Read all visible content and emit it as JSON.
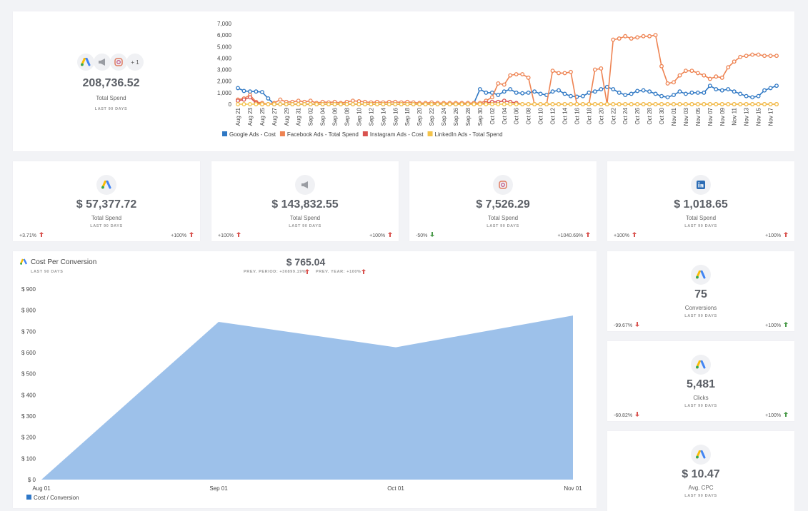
{
  "summary": {
    "value": "208,736.52",
    "label": "Total Spend",
    "period": "LAST 90 DAYS",
    "more": "+ 1"
  },
  "cards": [
    {
      "value": "$ 57,377.72",
      "label": "Total Spend",
      "period": "LAST 90 DAYS",
      "left": "+3.71%",
      "right": "+100%"
    },
    {
      "value": "$ 143,832.55",
      "label": "Total Spend",
      "period": "LAST 90 DAYS",
      "left": "+100%",
      "right": "+100%"
    },
    {
      "value": "$ 7,526.29",
      "label": "Total Spend",
      "period": "LAST 90 DAYS",
      "left": "-50%",
      "right": "+1040.69%"
    },
    {
      "value": "$ 1,018.65",
      "label": "Total Spend",
      "period": "LAST 90 DAYS",
      "left": "+100%",
      "right": "+100%"
    }
  ],
  "side_cards": [
    {
      "value": "75",
      "label": "Conversions",
      "period": "LAST 90 DAYS",
      "left": "-99.67%",
      "right": "+100%"
    },
    {
      "value": "5,481",
      "label": "Clicks",
      "period": "LAST 90 DAYS",
      "left": "-60.82%",
      "right": "+100%"
    },
    {
      "value": "$ 10.47",
      "label": "Avg. CPC",
      "period": "LAST 90 DAYS"
    }
  ],
  "cost_panel": {
    "title": "Cost Per Conversion",
    "period": "LAST 90 DAYS",
    "value": "$ 765.04",
    "prev_period": "PREV. PERIOD: +30899.19%",
    "prev_year": "PREV. YEAR: +100%"
  },
  "chart_data": [
    {
      "type": "line",
      "categories": [
        "Aug 21",
        null,
        "Aug 23",
        null,
        "Aug 25",
        null,
        "Aug 27",
        null,
        "Aug 29",
        null,
        "Aug 31",
        null,
        "Sep 02",
        null,
        "Sep 04",
        null,
        "Sep 06",
        null,
        "Sep 08",
        null,
        "Sep 10",
        null,
        "Sep 12",
        null,
        "Sep 14",
        null,
        "Sep 16",
        null,
        "Sep 18",
        null,
        "Sep 20",
        null,
        "Sep 22",
        null,
        "Sep 24",
        null,
        "Sep 26",
        null,
        "Sep 28",
        null,
        "Sep 30",
        null,
        "Oct 02",
        null,
        "Oct 04",
        null,
        "Oct 06",
        null,
        "Oct 08",
        null,
        "Oct 10",
        null,
        "Oct 12",
        null,
        "Oct 14",
        null,
        "Oct 16",
        null,
        "Oct 18",
        null,
        "Oct 20",
        null,
        "Oct 22",
        null,
        "Oct 24",
        null,
        "Oct 26",
        null,
        "Oct 28",
        null,
        "Oct 30",
        null,
        "Nov 01",
        null,
        "Nov 03",
        null,
        "Nov 05",
        null,
        "Nov 07",
        null,
        "Nov 09",
        null,
        "Nov 11",
        null,
        "Nov 13",
        null,
        "Nov 15",
        null,
        "Nov 17",
        null
      ],
      "series": [
        {
          "name": "Google Ads - Cost",
          "color": "#2f78c4",
          "values": [
            1400,
            1150,
            1100,
            1100,
            1050,
            500,
            0,
            0,
            0,
            0,
            0,
            0,
            0,
            0,
            0,
            0,
            0,
            0,
            0,
            0,
            0,
            0,
            0,
            0,
            0,
            0,
            0,
            0,
            0,
            0,
            0,
            0,
            0,
            0,
            0,
            0,
            0,
            0,
            0,
            100,
            1300,
            1000,
            1000,
            800,
            1100,
            1300,
            1000,
            950,
            1000,
            1100,
            900,
            800,
            1100,
            1200,
            900,
            700,
            650,
            700,
            1000,
            1100,
            1300,
            1500,
            1300,
            1000,
            800,
            900,
            1150,
            1200,
            1100,
            900,
            700,
            600,
            800,
            1100,
            900,
            1000,
            1000,
            1000,
            1600,
            1300,
            1200,
            1300,
            1100,
            900,
            700,
            600,
            700,
            1200,
            1400,
            1600
          ]
        },
        {
          "name": "Facebook Ads - Total Spend",
          "color": "#ee8352",
          "values": [
            400,
            500,
            800,
            200,
            100,
            0,
            100,
            400,
            200,
            200,
            300,
            200,
            300,
            100,
            200,
            150,
            200,
            100,
            200,
            300,
            250,
            200,
            150,
            200,
            150,
            200,
            200,
            150,
            200,
            150,
            100,
            100,
            150,
            100,
            100,
            100,
            100,
            100,
            100,
            100,
            100,
            300,
            600,
            1800,
            1700,
            2500,
            2600,
            2600,
            2300,
            0,
            0,
            0,
            2900,
            2700,
            2700,
            2800,
            0,
            0,
            0,
            3000,
            3100,
            0,
            5600,
            5700,
            5900,
            5700,
            5800,
            5900,
            5900,
            6000,
            3300,
            1800,
            1900,
            2500,
            2900,
            2900,
            2700,
            2500,
            2200,
            2400,
            2300,
            3200,
            3700,
            4100,
            4200,
            4300,
            4300,
            4200,
            4200,
            4200
          ]
        },
        {
          "name": "Instagram Ads - Cost",
          "color": "#d9534f",
          "values": [
            300,
            400,
            600,
            100,
            0,
            0,
            0,
            0,
            0,
            0,
            0,
            0,
            0,
            0,
            0,
            0,
            0,
            0,
            0,
            0,
            0,
            0,
            0,
            0,
            0,
            0,
            0,
            0,
            0,
            0,
            0,
            0,
            0,
            0,
            0,
            0,
            0,
            0,
            0,
            0,
            0,
            100,
            200,
            200,
            300,
            200,
            100,
            0,
            0,
            0,
            0,
            0,
            0,
            0,
            0,
            0,
            0,
            0,
            0,
            0,
            0,
            0,
            0,
            0,
            0,
            0,
            0,
            0,
            0,
            0,
            0,
            0,
            0,
            0,
            0,
            0,
            0,
            0,
            0,
            0,
            0,
            0,
            0,
            0,
            0,
            0,
            0,
            0,
            0,
            0
          ]
        },
        {
          "name": "LinkedIn Ads - Total Spend",
          "color": "#f4c34a",
          "values": [
            0,
            0,
            0,
            0,
            0,
            0,
            0,
            0,
            0,
            0,
            0,
            0,
            0,
            0,
            0,
            0,
            0,
            0,
            0,
            0,
            0,
            0,
            0,
            0,
            0,
            0,
            0,
            0,
            0,
            0,
            0,
            0,
            0,
            0,
            0,
            0,
            0,
            0,
            0,
            0,
            0,
            0,
            0,
            0,
            0,
            0,
            0,
            0,
            0,
            0,
            0,
            0,
            0,
            0,
            0,
            0,
            0,
            0,
            0,
            0,
            0,
            0,
            0,
            0,
            0,
            0,
            0,
            0,
            0,
            0,
            0,
            0,
            0,
            0,
            0,
            0,
            0,
            0,
            0,
            0,
            0,
            0,
            0,
            0,
            0,
            0,
            0,
            0,
            0,
            0
          ]
        }
      ],
      "ylim": [
        0,
        7000
      ],
      "yticks": [
        0,
        {
          "value": 1000,
          "label": "1,000"
        },
        {
          "value": 2000,
          "label": "2,000"
        },
        {
          "value": 3000,
          "label": "3,000"
        },
        {
          "value": 4000,
          "label": "4,000"
        },
        {
          "value": 5000,
          "label": "5,000"
        },
        {
          "value": 6000,
          "label": "6,000"
        },
        {
          "value": 7000,
          "label": "7,000"
        }
      ],
      "legend": "bottom"
    },
    {
      "type": "area",
      "categories": [
        "Aug 01",
        "Sep 01",
        "Oct 01",
        "Nov 01"
      ],
      "series": [
        {
          "name": "Cost / Conversion",
          "color": "#9dc1ea",
          "values": [
            0,
            745,
            625,
            775
          ]
        }
      ],
      "ylim": [
        0,
        900
      ],
      "yticks": [
        {
          "value": 0,
          "label": "$ 0"
        },
        {
          "value": 100,
          "label": "$ 100"
        },
        {
          "value": 200,
          "label": "$ 200"
        },
        {
          "value": 300,
          "label": "$ 300"
        },
        {
          "value": 400,
          "label": "$ 400"
        },
        {
          "value": 500,
          "label": "$ 500"
        },
        {
          "value": 600,
          "label": "$ 600"
        },
        {
          "value": 700,
          "label": "$ 700"
        },
        {
          "value": 800,
          "label": "$ 800"
        },
        {
          "value": 900,
          "label": "$ 900"
        }
      ],
      "legend": "bottom"
    }
  ]
}
